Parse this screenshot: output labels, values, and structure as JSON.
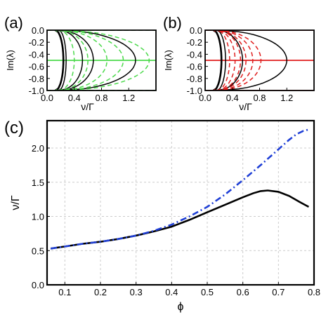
{
  "panels": {
    "a": {
      "label": "(a)"
    },
    "b": {
      "label": "(b)"
    },
    "c": {
      "label": "(c)"
    }
  },
  "colors": {
    "axis": "#000000",
    "grid": "#cccccc",
    "panel_a_accent": "#4cd94c",
    "panel_b_accent": "#e01e1e",
    "series_blue": "#1f3fd6",
    "series_black": "#000000"
  },
  "chart_data": [
    {
      "id": "a",
      "type": "line",
      "xlabel": "ν/Γ",
      "ylabel": "Im(λ)",
      "xlim": [
        0.0,
        1.6
      ],
      "ylim": [
        -1.0,
        0.0
      ],
      "xticks": [
        "0.0",
        "0.4",
        "0.8",
        "1.2"
      ],
      "xtick_values": [
        0.0,
        0.4,
        0.8,
        1.2
      ],
      "yticks": [
        "0.0",
        "-0.2",
        "-0.4",
        "-0.6",
        "-0.8",
        "-1.0"
      ],
      "ytick_values": [
        0.0,
        -0.2,
        -0.4,
        -0.6,
        -0.8,
        -1.0
      ],
      "accent": "#4cd94c",
      "series": [
        {
          "style": "solid",
          "color": "#000000",
          "tip": 0.28
        },
        {
          "style": "solid",
          "color": "#000000",
          "tip": 0.52
        },
        {
          "style": "solid",
          "color": "#000000",
          "tip": 0.68
        },
        {
          "style": "solid",
          "color": "#000000",
          "tip": 1.3
        },
        {
          "style": "dashed",
          "color": "#4cd94c",
          "tip": 0.4
        },
        {
          "style": "dashed",
          "color": "#4cd94c",
          "tip": 0.6
        },
        {
          "style": "dashed",
          "color": "#4cd94c",
          "tip": 0.88
        },
        {
          "style": "dashed",
          "color": "#4cd94c",
          "tip": 1.12
        },
        {
          "style": "dashed",
          "color": "#4cd94c",
          "tip": 1.5
        }
      ],
      "hlines": [
        {
          "y": 0.0,
          "style": "dashed",
          "color": "#4cd94c"
        },
        {
          "y": -0.5,
          "style": "solid",
          "color": "#4cd94c"
        },
        {
          "y": -1.0,
          "style": "dashed",
          "color": "#4cd94c"
        }
      ]
    },
    {
      "id": "b",
      "type": "line",
      "xlabel": "ν/Γ",
      "ylabel": "Im(λ)",
      "xlim": [
        0.0,
        1.6
      ],
      "ylim": [
        -1.0,
        0.0
      ],
      "xticks": [
        "0.0",
        "0.4",
        "0.8",
        "1.2"
      ],
      "xtick_values": [
        0.0,
        0.4,
        0.8,
        1.2
      ],
      "yticks": [
        "0.0",
        "-0.2",
        "-0.4",
        "-0.6",
        "-0.8",
        "-1.0"
      ],
      "ytick_values": [
        0.0,
        -0.2,
        -0.4,
        -0.6,
        -0.8,
        -1.0
      ],
      "accent": "#e01e1e",
      "series": [
        {
          "style": "solid",
          "color": "#000000",
          "tip": 0.3
        },
        {
          "style": "solid",
          "color": "#000000",
          "tip": 0.55
        },
        {
          "style": "solid",
          "color": "#000000",
          "tip": 1.2
        },
        {
          "style": "dashed",
          "color": "#e01e1e",
          "tip": 0.36
        },
        {
          "style": "dashed",
          "color": "#e01e1e",
          "tip": 0.44
        },
        {
          "style": "dashed",
          "color": "#e01e1e",
          "tip": 0.52
        },
        {
          "style": "dashed",
          "color": "#e01e1e",
          "tip": 0.6
        },
        {
          "style": "dashed",
          "color": "#e01e1e",
          "tip": 0.7
        },
        {
          "style": "dashed",
          "color": "#e01e1e",
          "tip": 0.82
        }
      ],
      "hlines": [
        {
          "y": 0.0,
          "style": "solid",
          "color": "#e01e1e"
        },
        {
          "y": -0.5,
          "style": "solid",
          "color": "#e01e1e"
        },
        {
          "y": -1.0,
          "style": "solid",
          "color": "#e01e1e"
        }
      ]
    },
    {
      "id": "c",
      "type": "line",
      "xlabel": "ϕ",
      "ylabel": "ν/Γ",
      "xlim": [
        0.05,
        0.8
      ],
      "ylim": [
        0.0,
        2.4
      ],
      "grid": true,
      "xticks": [
        "0.1",
        "0.2",
        "0.3",
        "0.4",
        "0.5",
        "0.6",
        "0.7",
        "0.8"
      ],
      "xtick_values": [
        0.1,
        0.2,
        0.3,
        0.4,
        0.5,
        0.6,
        0.7,
        0.8
      ],
      "yticks": [
        "0.0",
        "0.5",
        "1.0",
        "1.5",
        "2.0"
      ],
      "ytick_values": [
        0.0,
        0.5,
        1.0,
        1.5,
        2.0
      ],
      "series": [
        {
          "style": "solid",
          "color": "#000000",
          "x": [
            0.06,
            0.1,
            0.15,
            0.2,
            0.25,
            0.3,
            0.35,
            0.4,
            0.45,
            0.5,
            0.55,
            0.6,
            0.63,
            0.65,
            0.67,
            0.7,
            0.73,
            0.76,
            0.785
          ],
          "y": [
            0.53,
            0.56,
            0.6,
            0.63,
            0.67,
            0.72,
            0.78,
            0.85,
            0.95,
            1.06,
            1.17,
            1.28,
            1.34,
            1.37,
            1.38,
            1.36,
            1.3,
            1.21,
            1.14
          ]
        },
        {
          "style": "dashdot",
          "color": "#1f3fd6",
          "x": [
            0.06,
            0.1,
            0.15,
            0.2,
            0.25,
            0.3,
            0.35,
            0.4,
            0.45,
            0.5,
            0.55,
            0.6,
            0.65,
            0.7,
            0.73,
            0.75,
            0.77,
            0.785
          ],
          "y": [
            0.53,
            0.56,
            0.6,
            0.63,
            0.67,
            0.72,
            0.79,
            0.88,
            1.0,
            1.14,
            1.32,
            1.53,
            1.75,
            1.98,
            2.12,
            2.2,
            2.25,
            2.27
          ]
        }
      ]
    }
  ]
}
